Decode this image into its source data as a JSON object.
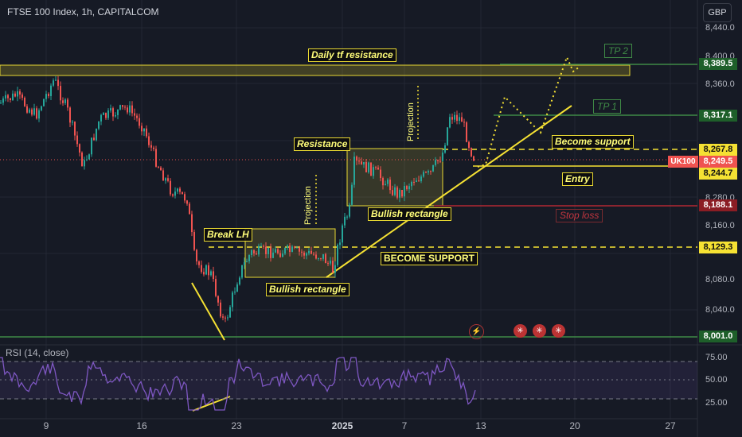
{
  "header": {
    "title": "FTSE 100 Index, 1h, CAPITALCOM"
  },
  "currency": "GBP",
  "rsi_header": "RSI (14, close)",
  "price_axis": [
    "8,440.0",
    "8,400.0",
    "8,360.0",
    "8,320.0",
    "8,280.0",
    "8,200.0",
    "8,160.0",
    "8,120.0",
    "8,080.0",
    "8,040.0"
  ],
  "rsi_axis": [
    "75.00",
    "50.00",
    "25.00"
  ],
  "x_axis": [
    "9",
    "16",
    "23",
    "2025",
    "7",
    "13",
    "20",
    "27"
  ],
  "price_tags": {
    "tp2": "8,389.5",
    "tp1": "8,317.1",
    "resistance": "8,267.8",
    "last": "8,249.5",
    "symbol": "UK100",
    "entry": "8,244.7",
    "stop": "8,188.1",
    "support": "8,129.3",
    "low": "8,001.0"
  },
  "annotations": {
    "daily": "Daily tf resistance",
    "tp2": "TP 2",
    "tp1": "TP 1",
    "resistance": "Resistance",
    "become_support": "Become support",
    "entry": "Entry",
    "stop_loss": "Stop loss",
    "bullish1": "Bullish rectangle",
    "bullish2": "Bullish rectangle",
    "break_lh": "Break LH",
    "become_support_caps": "BECOME SUPPORT",
    "projection1": "Projection",
    "projection2": "Projection"
  },
  "events": {
    "lightning": "⚡",
    "flag": "✳"
  },
  "colors": {
    "up": "#26a69a",
    "down": "#ef5350",
    "annotation": "#f5e133",
    "target": "#3f8a46",
    "stop": "#c2363f",
    "rsi": "#7e57c2"
  }
}
